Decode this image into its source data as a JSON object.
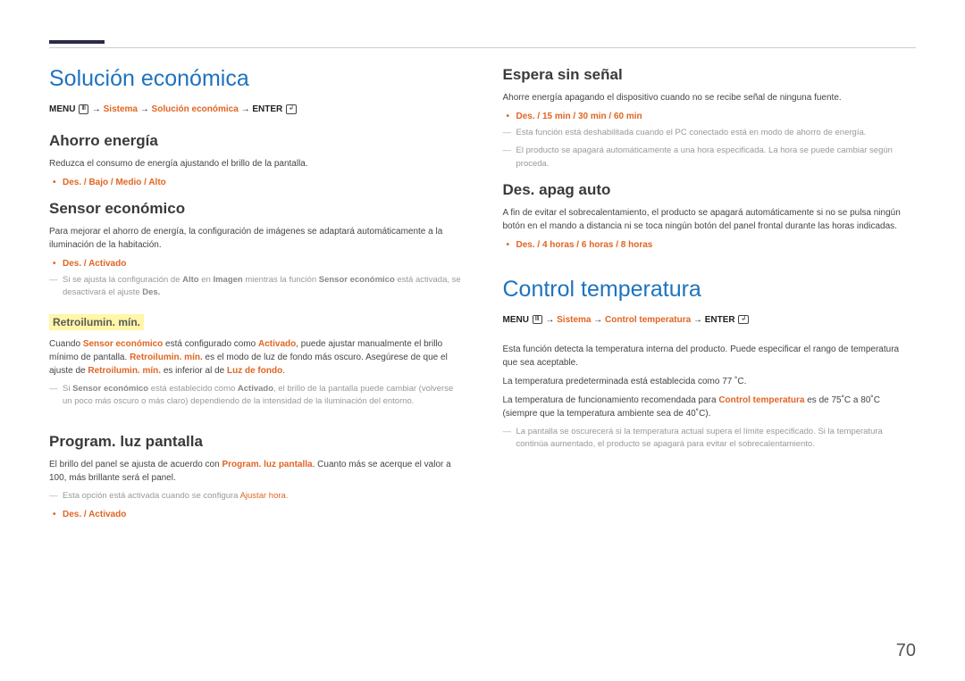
{
  "page_number": "70",
  "left": {
    "h1": "Solución económica",
    "menupath_html": "<span class='bold'>MENU</span> <span class='iconbox'>Ⅲ</span> → <span class='accent'>Sistema</span> → <span class='accent'>Solución económica</span> → <span class='bold'>ENTER</span> <span class='iconbox'>↲</span>",
    "s1": {
      "h2": "Ahorro energía",
      "p": "Reduzca el consumo de energía ajustando el brillo de la pantalla.",
      "opts": "Des. / Bajo / Medio / Alto"
    },
    "s2": {
      "h2": "Sensor económico",
      "p": "Para mejorar el ahorro de energía, la configuración de imágenes se adaptará automáticamente a la iluminación de la habitación.",
      "opts": "Des. / Activado",
      "note_html": "Si se ajusta la configuración de <span class='bold'>Alto</span> en <span class='bold'>Imagen</span> mientras la función <span class='bold'>Sensor económico</span> está activada, se desactivará el ajuste <span class='bold'>Des.</span>"
    },
    "s3": {
      "h3": "Retroilumin. mín.",
      "p_html": "Cuando <span class='accent'>Sensor económico</span> está configurado como <span class='accent'>Activado</span>, puede ajustar manualmente el brillo mínimo de pantalla. <span class='accent'>Retroilumin. mín.</span> es el modo de luz de fondo más oscuro. Asegúrese de que el ajuste de <span class='accent'>Retroilumin. mín.</span> es inferior al de <span class='accent'>Luz de fondo</span>.",
      "note_html": "Si <span class='bold'>Sensor económico</span> está establecido como <span class='bold'>Activado</span>, el brillo de la pantalla puede cambiar (volverse un poco más oscuro o más claro) dependiendo de la intensidad de la iluminación del entorno."
    },
    "s4": {
      "h2": "Program. luz pantalla",
      "p_html": "El brillo del panel se ajusta de acuerdo con <span class='accent'>Program. luz pantalla</span>. Cuanto más se acerque el valor a 100, más brillante será el panel.",
      "note_html": "Esta opción está activada cuando se configura <span class='accent'>Ajustar hora</span>.",
      "opts": "Des. / Activado"
    }
  },
  "right": {
    "s1": {
      "h2": "Espera sin señal",
      "p": "Ahorre energía apagando el dispositivo cuando no se recibe señal de ninguna fuente.",
      "opts": "Des. / 15 min / 30 min / 60 min",
      "note1": "Esta función está deshabilitada cuando el PC conectado está en modo de ahorro de energía.",
      "note2": "El producto se apagará automáticamente a una hora especificada. La hora se puede cambiar según proceda."
    },
    "s2": {
      "h2": "Des. apag auto",
      "p": "A fin de evitar el sobrecalentamiento, el producto se apagará automáticamente si no se pulsa ningún botón en el mando a distancia ni se toca ningún botón del panel frontal durante las horas indicadas.",
      "opts": "Des. / 4 horas / 6 horas / 8 horas"
    },
    "h1b": "Control temperatura",
    "menupath_b_html": "<span class='bold'>MENU</span> <span class='iconbox'>Ⅲ</span> → <span class='accent'>Sistema</span> → <span class='accent'>Control temperatura</span> → <span class='bold'>ENTER</span> <span class='iconbox'>↲</span>",
    "s3": {
      "p1": "Esta función detecta la temperatura interna del producto. Puede especificar el rango de temperatura que sea aceptable.",
      "p2": "La temperatura predeterminada está establecida como 77 ˚C.",
      "p3_html": "La temperatura de funcionamiento recomendada para <span class='accent'>Control temperatura</span> es de 75˚C a 80˚C (siempre que la temperatura ambiente sea de 40˚C).",
      "note": "La pantalla se oscurecerá si la temperatura actual supera el límite especificado. Si la temperatura continúa aumentado, el producto se apagará para evitar el sobrecalentamiento."
    }
  }
}
